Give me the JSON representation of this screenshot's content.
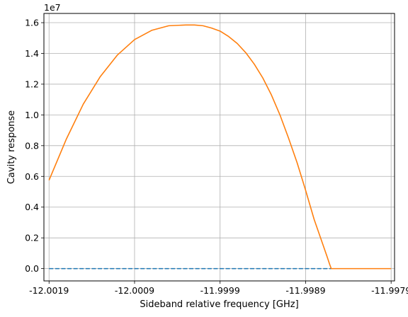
{
  "chart_data": {
    "type": "line",
    "xlabel": "Sideband relative frequency [GHz]",
    "ylabel": "Cavity response",
    "y_offset_label": "1e7",
    "xlim": [
      -12.00196,
      -11.99786
    ],
    "ylim": [
      -0.08,
      1.66
    ],
    "x_ticks": [
      -12.0019,
      -12.0009,
      -11.9999,
      -11.9989,
      -11.9979
    ],
    "x_tick_labels": [
      "-12.0019",
      "-12.0009",
      "-11.9999",
      "-11.9989",
      "-11.9979"
    ],
    "y_ticks": [
      0.0,
      0.2,
      0.4,
      0.6,
      0.8,
      1.0,
      1.2,
      1.4,
      1.6
    ],
    "y_tick_labels": [
      "0.0",
      "0.2",
      "0.4",
      "0.6",
      "0.8",
      "1.0",
      "1.2",
      "1.4",
      "1.6"
    ],
    "grid": true,
    "series": [
      {
        "color": "#1f77b4",
        "style": "dashed",
        "x": [
          -12.0019,
          -11.9986
        ],
        "y": [
          0.0,
          0.0
        ]
      },
      {
        "color": "#ff7f0e",
        "style": "solid",
        "x": [
          -12.0019,
          -12.0017,
          -12.0015,
          -12.0013,
          -12.0011,
          -12.0009,
          -12.0007,
          -12.0005,
          -12.0003,
          -12.0002,
          -12.0001,
          -12.0,
          -11.9999,
          -11.9998,
          -11.9997,
          -11.9996,
          -11.9995,
          -11.9994,
          -11.9993,
          -11.9992,
          -11.9991,
          -11.999,
          -11.9989,
          -11.9988,
          -11.99875,
          -11.9987,
          -11.99865,
          -11.99862,
          -11.9986,
          -11.99855,
          -11.9983,
          -11.998,
          -11.9979
        ],
        "y": [
          0.575,
          0.84,
          1.07,
          1.25,
          1.39,
          1.49,
          1.55,
          1.58,
          1.585,
          1.585,
          1.58,
          1.565,
          1.545,
          1.51,
          1.465,
          1.405,
          1.33,
          1.24,
          1.13,
          1.0,
          0.85,
          0.69,
          0.51,
          0.32,
          0.24,
          0.16,
          0.08,
          0.03,
          0.0,
          0.0,
          0.0,
          0.0,
          0.0
        ]
      }
    ]
  }
}
